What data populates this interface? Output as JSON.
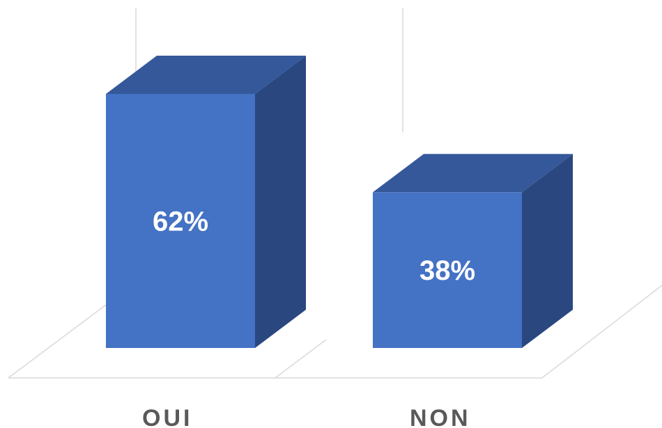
{
  "chart_data": {
    "type": "bar",
    "style": "3d-column",
    "categories": [
      "OUI",
      "NON"
    ],
    "values": [
      62,
      38
    ],
    "data_labels": [
      "62%",
      "38%"
    ],
    "title": "",
    "xlabel": "",
    "ylabel": "",
    "ylim": [
      0,
      80
    ],
    "grid": true,
    "legend": "none",
    "colors": {
      "front": "#4472c4",
      "top": "#35589a",
      "side": "#2a4780",
      "grid": "#d9d9d9",
      "label": "#595959"
    }
  }
}
